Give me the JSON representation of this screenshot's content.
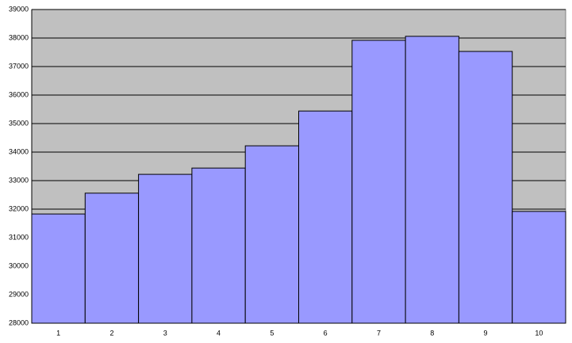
{
  "chart_data": {
    "type": "bar",
    "categories": [
      "1",
      "2",
      "3",
      "4",
      "5",
      "6",
      "7",
      "8",
      "9",
      "10"
    ],
    "values": [
      31830,
      32560,
      33220,
      33440,
      34220,
      35440,
      37920,
      38060,
      37530,
      31920
    ],
    "color": "#9999ff",
    "ylim": [
      28000,
      39000
    ],
    "yticks": [
      28000,
      29000,
      30000,
      31000,
      32000,
      33000,
      34000,
      35000,
      36000,
      37000,
      38000,
      39000
    ],
    "grid": true
  }
}
